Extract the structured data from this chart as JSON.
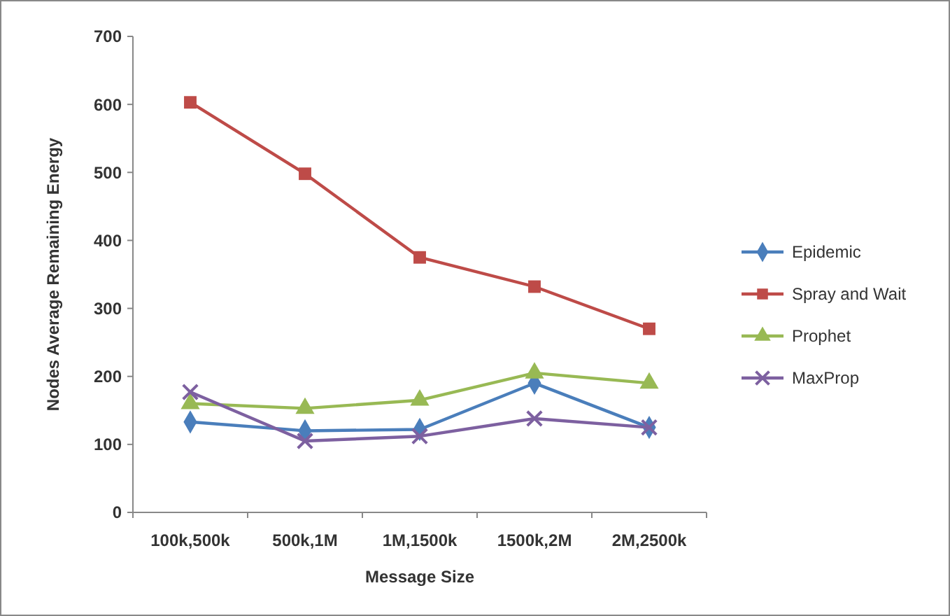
{
  "chart_data": {
    "type": "line",
    "xlabel": "Message Size",
    "ylabel": "Nodes Average Remaining Energy",
    "categories": [
      "100k,500k",
      "500k,1M",
      "1M,1500k",
      "1500k,2M",
      "2M,2500k"
    ],
    "series": [
      {
        "name": "Epidemic",
        "color": "#4a7ebb",
        "marker": "diamond",
        "values": [
          133,
          120,
          122,
          190,
          125
        ]
      },
      {
        "name": "Spray and Wait",
        "color": "#be4b48",
        "marker": "square",
        "values": [
          603,
          498,
          375,
          332,
          270
        ]
      },
      {
        "name": "Prophet",
        "color": "#98b954",
        "marker": "triangle",
        "values": [
          160,
          153,
          165,
          205,
          190
        ]
      },
      {
        "name": "MaxProp",
        "color": "#7d60a0",
        "marker": "cross",
        "values": [
          177,
          105,
          112,
          138,
          125
        ]
      }
    ],
    "ylim": [
      0,
      700
    ],
    "yticks": [
      0,
      100,
      200,
      300,
      400,
      500,
      600,
      700
    ],
    "grid": false,
    "legend": "right"
  }
}
